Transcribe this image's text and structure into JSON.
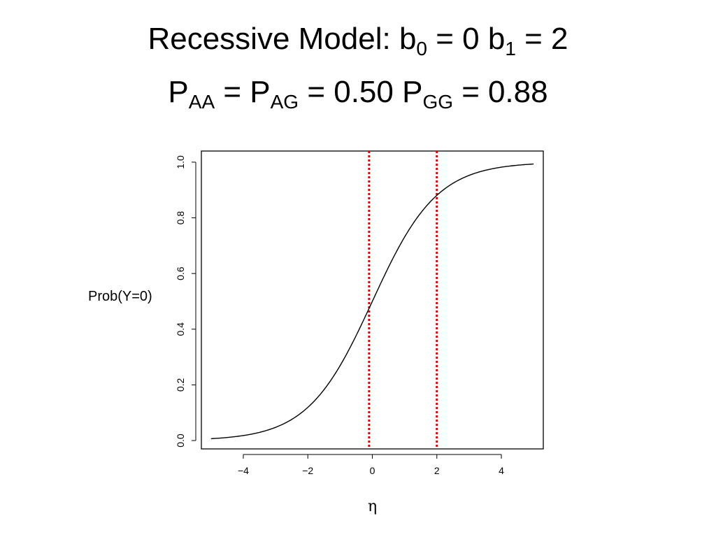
{
  "title": {
    "line1": {
      "text": "Recessive Model: b",
      "sub0": "0",
      "mid": " = 0 b",
      "sub1": "1",
      "end": " = 2"
    },
    "line2": {
      "p1": "P",
      "sub_aa": "AA",
      "eq1": " = P",
      "sub_ag": "AG",
      "eq2": " = 0.50 P",
      "sub_gg": "GG",
      "eq3": " =",
      "value": "0.88"
    }
  },
  "chart_data": {
    "type": "line",
    "xlabel": "η",
    "ylabel": "Prob(Y=0)",
    "xlim": [
      -5.3,
      5.3
    ],
    "ylim": [
      -0.03,
      1.04
    ],
    "xticks": [
      -4,
      -2,
      0,
      2,
      4
    ],
    "xtick_labels": [
      "−4",
      "−2",
      "0",
      "2",
      "4"
    ],
    "yticks": [
      0.0,
      0.2,
      0.4,
      0.6,
      0.8,
      1.0
    ],
    "ytick_labels": [
      "0.0",
      "0.2",
      "0.4",
      "0.6",
      "0.8",
      "1.0"
    ],
    "series": [
      {
        "function": "logistic",
        "x_range": [
          -5,
          5
        ],
        "color": "#000000"
      }
    ],
    "vlines": [
      {
        "x": -0.1,
        "color": "#e00000",
        "style": "dotted"
      },
      {
        "x": 2.0,
        "color": "#e00000",
        "style": "dotted"
      }
    ]
  }
}
